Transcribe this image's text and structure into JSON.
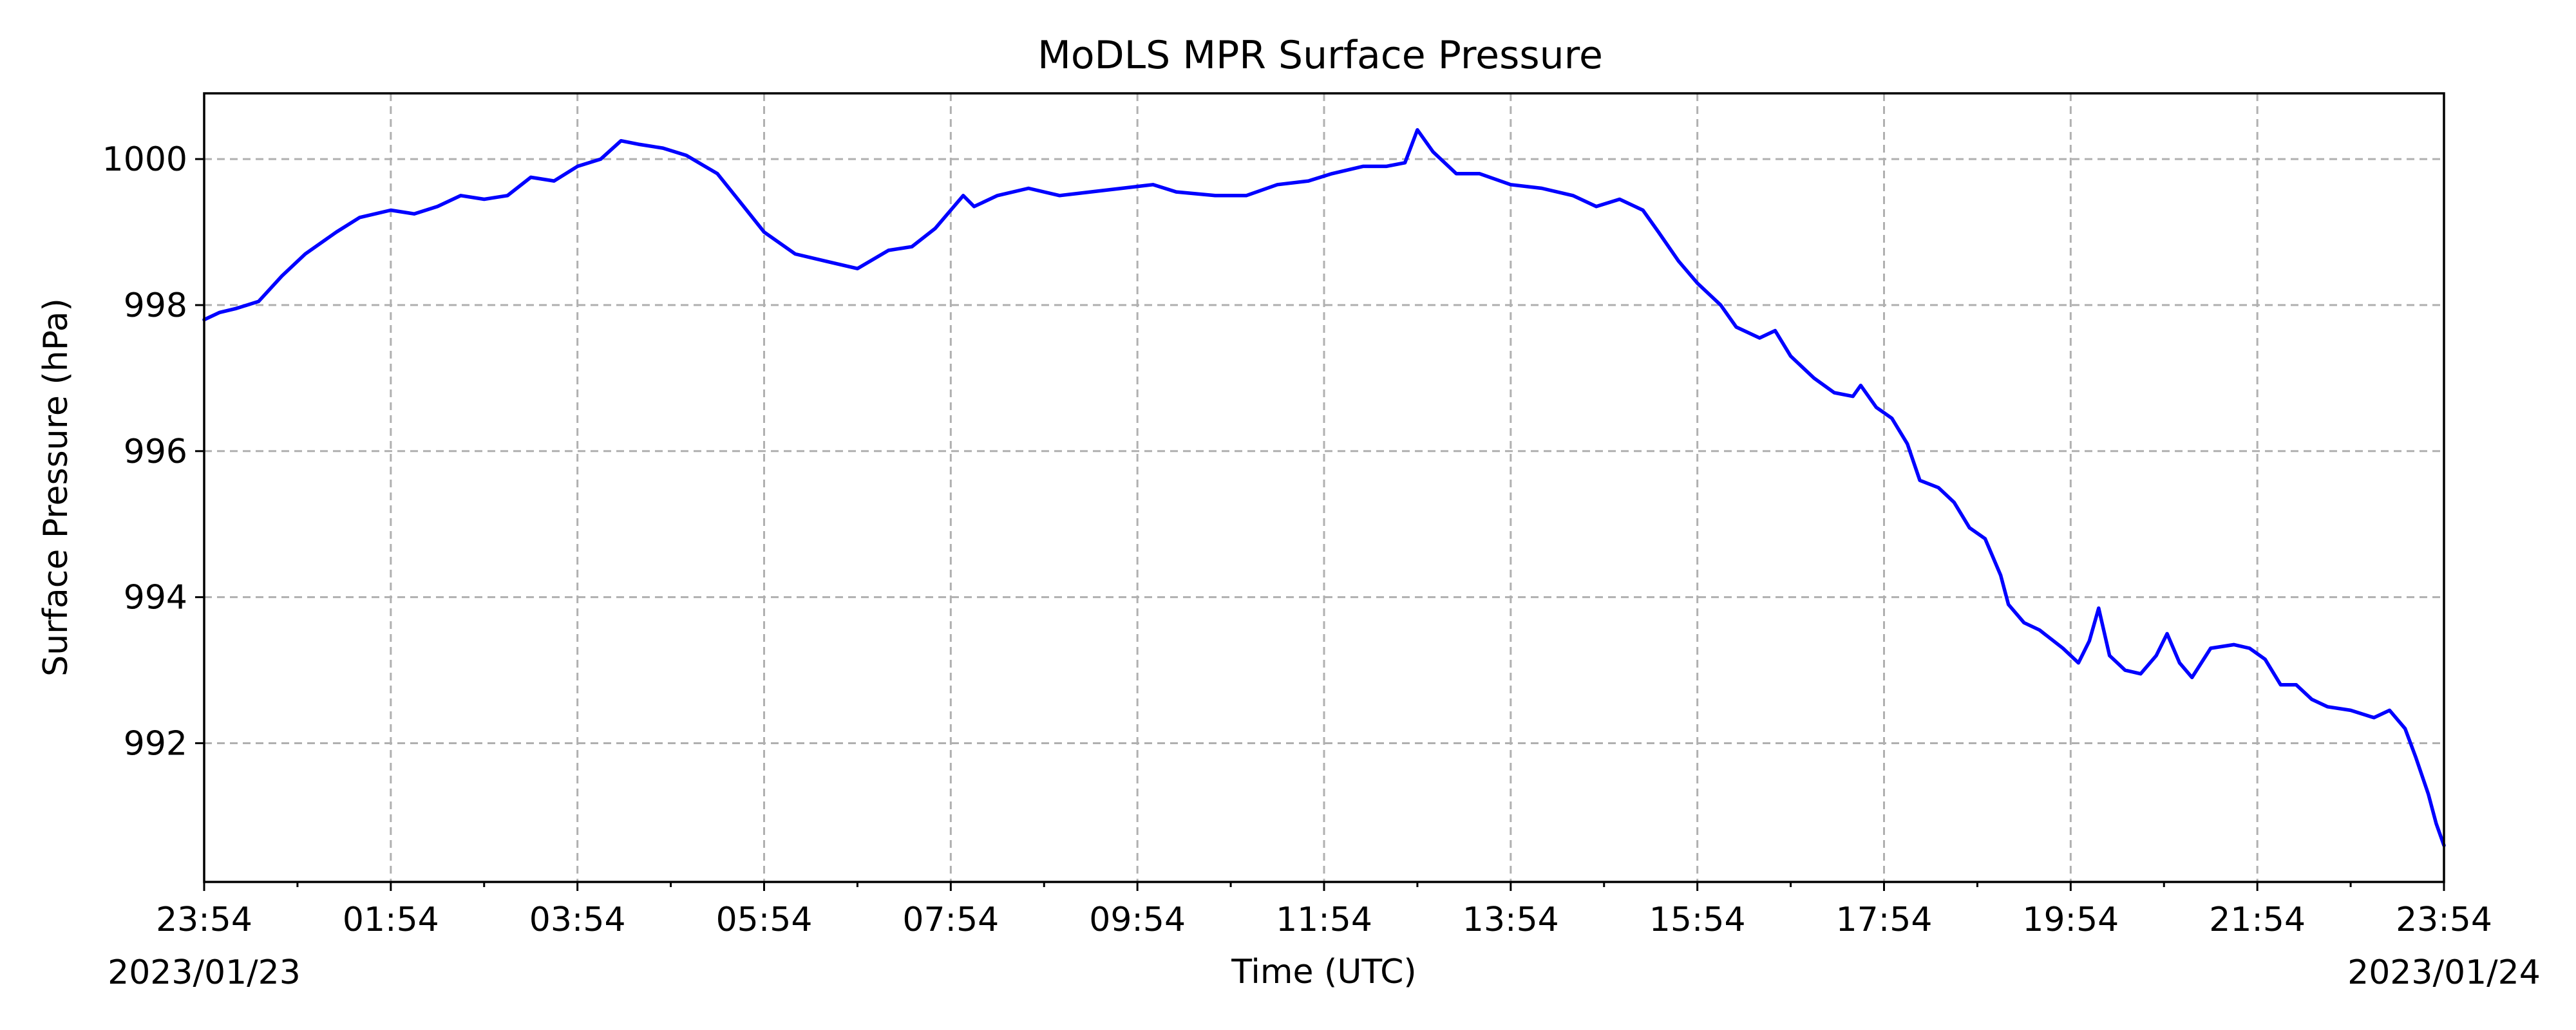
{
  "chart_data": {
    "type": "line",
    "title": "MoDLS MPR Surface Pressure",
    "xlabel": "Time (UTC)",
    "ylabel": "Surface Pressure (hPa)",
    "xlim": [
      0,
      1440
    ],
    "ylim": [
      990.1,
      1000.9
    ],
    "grid": true,
    "line_color": "#0000ff",
    "y_ticks": [
      992,
      994,
      996,
      998,
      1000
    ],
    "x_ticks": [
      {
        "t": 0,
        "label": "23:54",
        "date": "2023/01/23"
      },
      {
        "t": 120,
        "label": "01:54",
        "date": ""
      },
      {
        "t": 240,
        "label": "03:54",
        "date": ""
      },
      {
        "t": 360,
        "label": "05:54",
        "date": ""
      },
      {
        "t": 480,
        "label": "07:54",
        "date": ""
      },
      {
        "t": 600,
        "label": "09:54",
        "date": ""
      },
      {
        "t": 720,
        "label": "11:54",
        "date": ""
      },
      {
        "t": 840,
        "label": "13:54",
        "date": ""
      },
      {
        "t": 960,
        "label": "15:54",
        "date": ""
      },
      {
        "t": 1080,
        "label": "17:54",
        "date": ""
      },
      {
        "t": 1200,
        "label": "19:54",
        "date": ""
      },
      {
        "t": 1320,
        "label": "21:54",
        "date": ""
      },
      {
        "t": 1440,
        "label": "23:54",
        "date": "2023/01/24"
      }
    ],
    "series": [
      {
        "values": [
          [
            0,
            997.8
          ],
          [
            10,
            997.9
          ],
          [
            20,
            997.95
          ],
          [
            35,
            998.05
          ],
          [
            50,
            998.4
          ],
          [
            65,
            998.7
          ],
          [
            85,
            999.0
          ],
          [
            100,
            999.2
          ],
          [
            120,
            999.3
          ],
          [
            135,
            999.25
          ],
          [
            150,
            999.35
          ],
          [
            165,
            999.5
          ],
          [
            180,
            999.45
          ],
          [
            195,
            999.5
          ],
          [
            210,
            999.75
          ],
          [
            225,
            999.7
          ],
          [
            240,
            999.9
          ],
          [
            255,
            1000.0
          ],
          [
            268,
            1000.25
          ],
          [
            280,
            1000.2
          ],
          [
            295,
            1000.15
          ],
          [
            310,
            1000.05
          ],
          [
            330,
            999.8
          ],
          [
            345,
            999.4
          ],
          [
            360,
            999.0
          ],
          [
            380,
            998.7
          ],
          [
            400,
            998.6
          ],
          [
            420,
            998.5
          ],
          [
            440,
            998.75
          ],
          [
            455,
            998.8
          ],
          [
            470,
            999.05
          ],
          [
            480,
            999.3
          ],
          [
            488,
            999.5
          ],
          [
            495,
            999.35
          ],
          [
            510,
            999.5
          ],
          [
            530,
            999.6
          ],
          [
            550,
            999.5
          ],
          [
            570,
            999.55
          ],
          [
            590,
            999.6
          ],
          [
            610,
            999.65
          ],
          [
            625,
            999.55
          ],
          [
            650,
            999.5
          ],
          [
            670,
            999.5
          ],
          [
            690,
            999.65
          ],
          [
            710,
            999.7
          ],
          [
            725,
            999.8
          ],
          [
            745,
            999.9
          ],
          [
            760,
            999.9
          ],
          [
            772,
            999.95
          ],
          [
            780,
            1000.4
          ],
          [
            790,
            1000.1
          ],
          [
            805,
            999.8
          ],
          [
            820,
            999.8
          ],
          [
            840,
            999.65
          ],
          [
            860,
            999.6
          ],
          [
            880,
            999.5
          ],
          [
            895,
            999.35
          ],
          [
            910,
            999.45
          ],
          [
            925,
            999.3
          ],
          [
            935,
            999.0
          ],
          [
            948,
            998.6
          ],
          [
            960,
            998.3
          ],
          [
            975,
            998.0
          ],
          [
            985,
            997.7
          ],
          [
            1000,
            997.55
          ],
          [
            1010,
            997.65
          ],
          [
            1020,
            997.3
          ],
          [
            1035,
            997.0
          ],
          [
            1048,
            996.8
          ],
          [
            1060,
            996.75
          ],
          [
            1065,
            996.9
          ],
          [
            1075,
            996.6
          ],
          [
            1085,
            996.45
          ],
          [
            1095,
            996.1
          ],
          [
            1103,
            995.6
          ],
          [
            1115,
            995.5
          ],
          [
            1125,
            995.3
          ],
          [
            1135,
            994.95
          ],
          [
            1145,
            994.8
          ],
          [
            1155,
            994.3
          ],
          [
            1160,
            993.9
          ],
          [
            1170,
            993.65
          ],
          [
            1180,
            993.55
          ],
          [
            1195,
            993.3
          ],
          [
            1205,
            993.1
          ],
          [
            1212,
            993.4
          ],
          [
            1218,
            993.85
          ],
          [
            1225,
            993.2
          ],
          [
            1235,
            993.0
          ],
          [
            1245,
            992.95
          ],
          [
            1255,
            993.2
          ],
          [
            1262,
            993.5
          ],
          [
            1270,
            993.1
          ],
          [
            1278,
            992.9
          ],
          [
            1290,
            993.3
          ],
          [
            1305,
            993.35
          ],
          [
            1315,
            993.3
          ],
          [
            1325,
            993.15
          ],
          [
            1335,
            992.8
          ],
          [
            1345,
            992.8
          ],
          [
            1355,
            992.6
          ],
          [
            1365,
            992.5
          ],
          [
            1380,
            992.45
          ],
          [
            1395,
            992.35
          ],
          [
            1405,
            992.45
          ],
          [
            1415,
            992.2
          ],
          [
            1422,
            991.8
          ],
          [
            1430,
            991.3
          ],
          [
            1435,
            990.9
          ],
          [
            1440,
            990.6
          ]
        ]
      }
    ]
  }
}
